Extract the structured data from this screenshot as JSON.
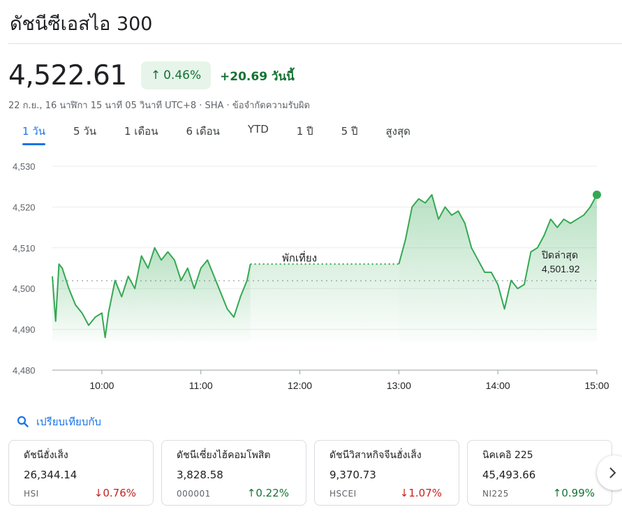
{
  "header": {
    "title": "ดัชนีซีเอสไอ 300"
  },
  "quote": {
    "price": "4,522.61",
    "change_pct": "0.46%",
    "change_abs": "+20.69 วันนี้",
    "meta": "22 ก.ย., 16 นาฬิกา 15 นาที 05 วินาที UTC+8 · SHA · ข้อจำกัดความรับผิด"
  },
  "tabs": [
    "1 วัน",
    "5 วัน",
    "1 เดือน",
    "6 เดือน",
    "YTD",
    "1 ปี",
    "5 ปี",
    "สูงสุด"
  ],
  "active_tab": 0,
  "colors": {
    "positive": "#137333",
    "negative": "#c5221f",
    "accent": "#1a73e8",
    "line": "#34a853"
  },
  "chart_data": {
    "type": "line",
    "x_ticks": [
      "10:00",
      "11:00",
      "12:00",
      "13:00",
      "14:00",
      "15:00"
    ],
    "y_ticks": [
      "4,530",
      "4,520",
      "4,510",
      "4,500",
      "4,490",
      "4,480"
    ],
    "ylim": [
      4480,
      4530
    ],
    "previous_close": 4501.92,
    "previous_close_label": "ปิดล่าสุด",
    "previous_close_value": "4,501.92",
    "break_label": "พักเที่ยง",
    "break_start": "11:30",
    "break_end": "13:00",
    "series": [
      {
        "values_time": [
          "09:30",
          "09:32",
          "09:34",
          "09:36",
          "09:40",
          "09:44",
          "09:48",
          "09:52",
          "09:56",
          "10:00",
          "10:02",
          "10:04",
          "10:08",
          "10:12",
          "10:16",
          "10:20",
          "10:24",
          "10:28",
          "10:32",
          "10:36",
          "10:40",
          "10:44",
          "10:48",
          "10:52",
          "10:56",
          "11:00",
          "11:04",
          "11:08",
          "11:12",
          "11:16",
          "11:20",
          "11:24",
          "11:28",
          "11:30"
        ],
        "morning_values": [
          4503,
          4492,
          4506,
          4505,
          4500,
          4496,
          4494,
          4491,
          4493,
          4494,
          4488,
          4494,
          4502,
          4498,
          4503,
          4500,
          4508,
          4505,
          4510,
          4507,
          4509,
          4507,
          4502,
          4505,
          4500,
          4505,
          4507,
          4503,
          4499,
          4495,
          4493,
          4498,
          4502,
          4506
        ],
        "afternoon_times": [
          "13:00",
          "13:04",
          "13:08",
          "13:12",
          "13:16",
          "13:20",
          "13:24",
          "13:28",
          "13:32",
          "13:36",
          "13:40",
          "13:44",
          "13:48",
          "13:52",
          "13:56",
          "14:00",
          "14:04",
          "14:08",
          "14:12",
          "14:16",
          "14:20",
          "14:24",
          "14:28",
          "14:32",
          "14:36",
          "14:40",
          "14:44",
          "14:48",
          "14:52",
          "14:56",
          "15:00"
        ],
        "afternoon_values": [
          4506,
          4512,
          4520,
          4522,
          4521,
          4523,
          4517,
          4520,
          4518,
          4519,
          4516,
          4510,
          4507,
          4504,
          4504,
          4501,
          4495,
          4502,
          4500,
          4501,
          4509,
          4510,
          4513,
          4517,
          4515,
          4517,
          4516,
          4517,
          4518,
          4520,
          4523
        ]
      }
    ]
  },
  "compare": {
    "label": "เปรียบเทียบกับ"
  },
  "cards": [
    {
      "name": "ดัชนีฮั่งเส็ง",
      "value": "26,344.14",
      "code": "HSI",
      "change": "0.76%",
      "dir": "down"
    },
    {
      "name": "ดัชนีเซี่ยงไฮ้คอมโพสิต",
      "value": "3,828.58",
      "code": "000001",
      "change": "0.22%",
      "dir": "up"
    },
    {
      "name": "ดัชนีวิสาหกิจจีนฮั่งเส็ง",
      "value": "9,370.73",
      "code": "HSCEI",
      "change": "1.07%",
      "dir": "down"
    },
    {
      "name": "นิคเคอิ 225",
      "value": "45,493.66",
      "code": "NI225",
      "change": "0.99%",
      "dir": "up"
    }
  ]
}
